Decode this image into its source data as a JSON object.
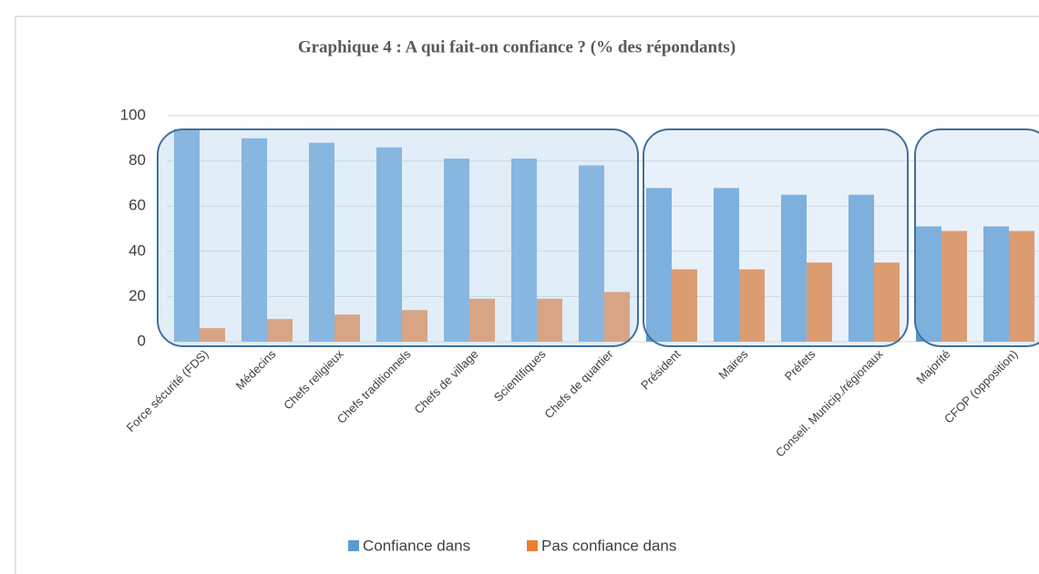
{
  "chart_data": {
    "type": "bar",
    "title": "Graphique 4 : A qui fait-on confiance ? (% des répondants)",
    "categories": [
      "Force sécurité (FDS)",
      "Médecins",
      "Chefs religieux",
      "Chefs traditionnels",
      "Chefs de village",
      "Scientifiques",
      "Chefs de quartier",
      "Président",
      "Maires",
      "Préfets",
      "Conseil. Municip./régionaux",
      "Majorité",
      "CFOP (opposition)"
    ],
    "series": [
      {
        "name": "Confiance dans",
        "color": "#5b9bd5",
        "values": [
          94,
          90,
          88,
          86,
          81,
          81,
          78,
          68,
          68,
          65,
          65,
          51,
          51
        ]
      },
      {
        "name": "Pas confiance dans",
        "color": "#ed7d31",
        "values": [
          6,
          10,
          12,
          14,
          19,
          19,
          22,
          32,
          32,
          35,
          35,
          49,
          49
        ]
      }
    ],
    "ylim": [
      0,
      100
    ],
    "yticks": [
      0,
      20,
      40,
      60,
      80,
      100
    ],
    "grid": true,
    "legend": "bottom"
  }
}
